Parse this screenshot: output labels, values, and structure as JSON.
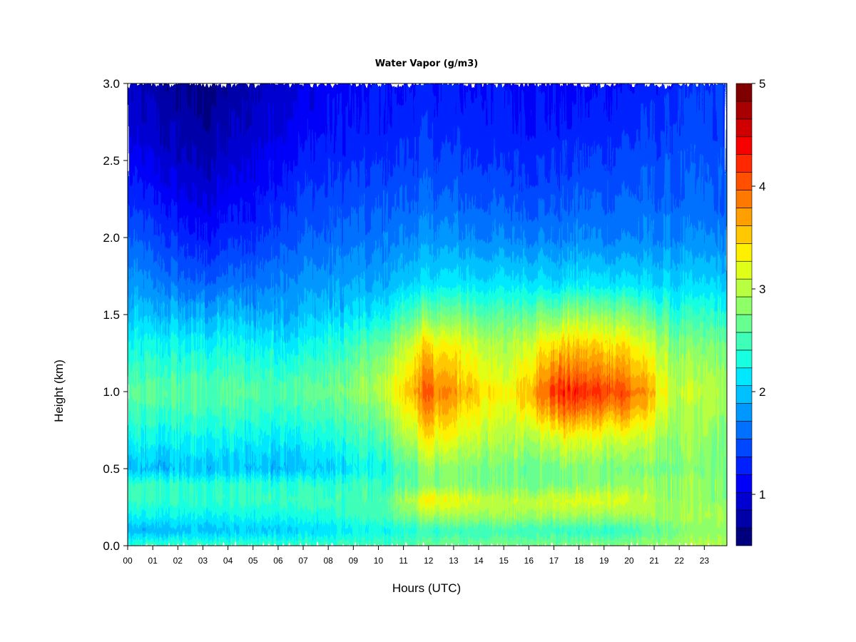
{
  "chart_data": {
    "type": "heatmap",
    "title": "Water Vapor (g/m3)",
    "xlabel": "Hours (UTC)",
    "ylabel": "Height (km)",
    "xlim": [
      0,
      23.9
    ],
    "ylim": [
      0.0,
      3.0
    ],
    "x_ticks": [
      "00",
      "01",
      "02",
      "03",
      "04",
      "05",
      "06",
      "07",
      "08",
      "09",
      "10",
      "11",
      "12",
      "13",
      "14",
      "15",
      "16",
      "17",
      "18",
      "19",
      "20",
      "21",
      "22",
      "23"
    ],
    "y_ticks": [
      "0.0",
      "0.5",
      "1.0",
      "1.5",
      "2.0",
      "2.5",
      "3.0"
    ],
    "colorbar": {
      "min": 0.5,
      "max": 5.0,
      "step": 0.2,
      "tick_labels": [
        "1",
        "2",
        "3",
        "4",
        "5"
      ],
      "colors": [
        "#00007F",
        "#0000A8",
        "#0000D0",
        "#0000F8",
        "#0020FF",
        "#0048FF",
        "#0070FF",
        "#0098FF",
        "#00C0FF",
        "#00E8FF",
        "#17FFE0",
        "#3FFFB8",
        "#67FF90",
        "#8FFF68",
        "#B7FF40",
        "#DFFF18",
        "#FFF000",
        "#FFC800",
        "#FFA000",
        "#FF7800",
        "#FF5000",
        "#FF2800",
        "#F80000",
        "#D00000",
        "#A80000",
        "#800000"
      ]
    },
    "profile_heights_km": [
      0.0,
      0.1,
      0.2,
      0.3,
      0.4,
      0.5,
      0.7,
      0.9,
      1.0,
      1.1,
      1.3,
      1.5,
      1.7,
      2.0,
      2.3,
      2.6,
      3.0
    ],
    "profile_times_h": [
      0,
      3,
      7,
      10,
      12,
      15,
      17.3,
      19.7,
      22,
      23.9
    ],
    "values_g_m3": [
      [
        2.7,
        2.1,
        2.5,
        2.7,
        2.7,
        2.1,
        2.5,
        2.8,
        2.9,
        2.8,
        2.5,
        2.2,
        2.0,
        1.7,
        1.4,
        1.1,
        0.9
      ],
      [
        2.8,
        2.2,
        2.5,
        2.7,
        2.7,
        2.2,
        2.5,
        2.8,
        2.9,
        2.8,
        2.5,
        2.1,
        1.7,
        1.3,
        1.0,
        0.8,
        0.6
      ],
      [
        2.8,
        2.3,
        2.6,
        2.8,
        2.7,
        2.2,
        2.5,
        2.8,
        2.9,
        2.8,
        2.5,
        2.2,
        2.0,
        1.7,
        1.5,
        1.3,
        1.1
      ],
      [
        2.8,
        2.5,
        2.8,
        2.8,
        2.7,
        2.5,
        2.8,
        3.1,
        3.3,
        3.2,
        2.9,
        2.4,
        2.1,
        1.8,
        1.6,
        1.4,
        1.3
      ],
      [
        3.0,
        2.7,
        3.3,
        3.8,
        3.1,
        3.2,
        3.8,
        4.3,
        4.5,
        4.3,
        3.9,
        3.1,
        2.4,
        2.0,
        1.7,
        1.5,
        1.3
      ],
      [
        3.1,
        2.8,
        3.3,
        3.4,
        3.1,
        3.0,
        3.3,
        3.5,
        3.7,
        3.5,
        3.3,
        2.9,
        2.4,
        1.9,
        1.6,
        1.4,
        1.3
      ],
      [
        3.1,
        2.7,
        3.3,
        3.6,
        3.1,
        3.1,
        3.6,
        4.5,
        4.8,
        4.5,
        4.0,
        3.2,
        2.4,
        1.9,
        1.6,
        1.4,
        1.2
      ],
      [
        3.2,
        2.7,
        3.3,
        3.6,
        3.2,
        3.1,
        3.6,
        4.4,
        4.7,
        4.4,
        3.9,
        3.2,
        2.4,
        1.9,
        1.7,
        1.5,
        1.3
      ],
      [
        3.3,
        3.1,
        3.3,
        3.2,
        3.2,
        3.1,
        3.2,
        3.3,
        3.4,
        3.3,
        3.1,
        2.7,
        2.3,
        1.9,
        1.7,
        1.6,
        1.4
      ],
      [
        3.4,
        3.2,
        3.3,
        3.2,
        3.2,
        3.1,
        3.2,
        3.3,
        3.4,
        3.3,
        3.1,
        2.7,
        2.3,
        1.9,
        1.7,
        1.6,
        1.5
      ]
    ]
  }
}
